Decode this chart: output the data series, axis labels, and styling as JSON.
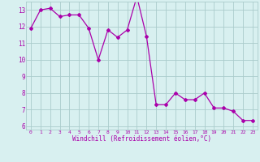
{
  "x": [
    0,
    1,
    2,
    3,
    4,
    5,
    6,
    7,
    8,
    9,
    10,
    11,
    12,
    13,
    14,
    15,
    16,
    17,
    18,
    19,
    20,
    21,
    22,
    23
  ],
  "y": [
    11.9,
    13.0,
    13.1,
    12.6,
    12.7,
    12.7,
    11.9,
    10.0,
    11.8,
    11.35,
    11.8,
    13.8,
    11.4,
    7.3,
    7.3,
    8.0,
    7.6,
    7.6,
    8.0,
    7.1,
    7.1,
    6.9,
    6.35,
    6.35
  ],
  "line_color": "#aa00aa",
  "marker": "D",
  "marker_size": 2.0,
  "bg_color": "#d8f0f0",
  "grid_color": "#aacccc",
  "xlabel": "Windchill (Refroidissement éolien,°C)",
  "xlabel_color": "#aa00aa",
  "tick_color": "#aa00aa",
  "ylim": [
    5.8,
    13.5
  ],
  "xlim": [
    -0.5,
    23.5
  ],
  "yticks": [
    6,
    7,
    8,
    9,
    10,
    11,
    12,
    13
  ],
  "xticks": [
    0,
    1,
    2,
    3,
    4,
    5,
    6,
    7,
    8,
    9,
    10,
    11,
    12,
    13,
    14,
    15,
    16,
    17,
    18,
    19,
    20,
    21,
    22,
    23
  ],
  "line_width": 0.9
}
